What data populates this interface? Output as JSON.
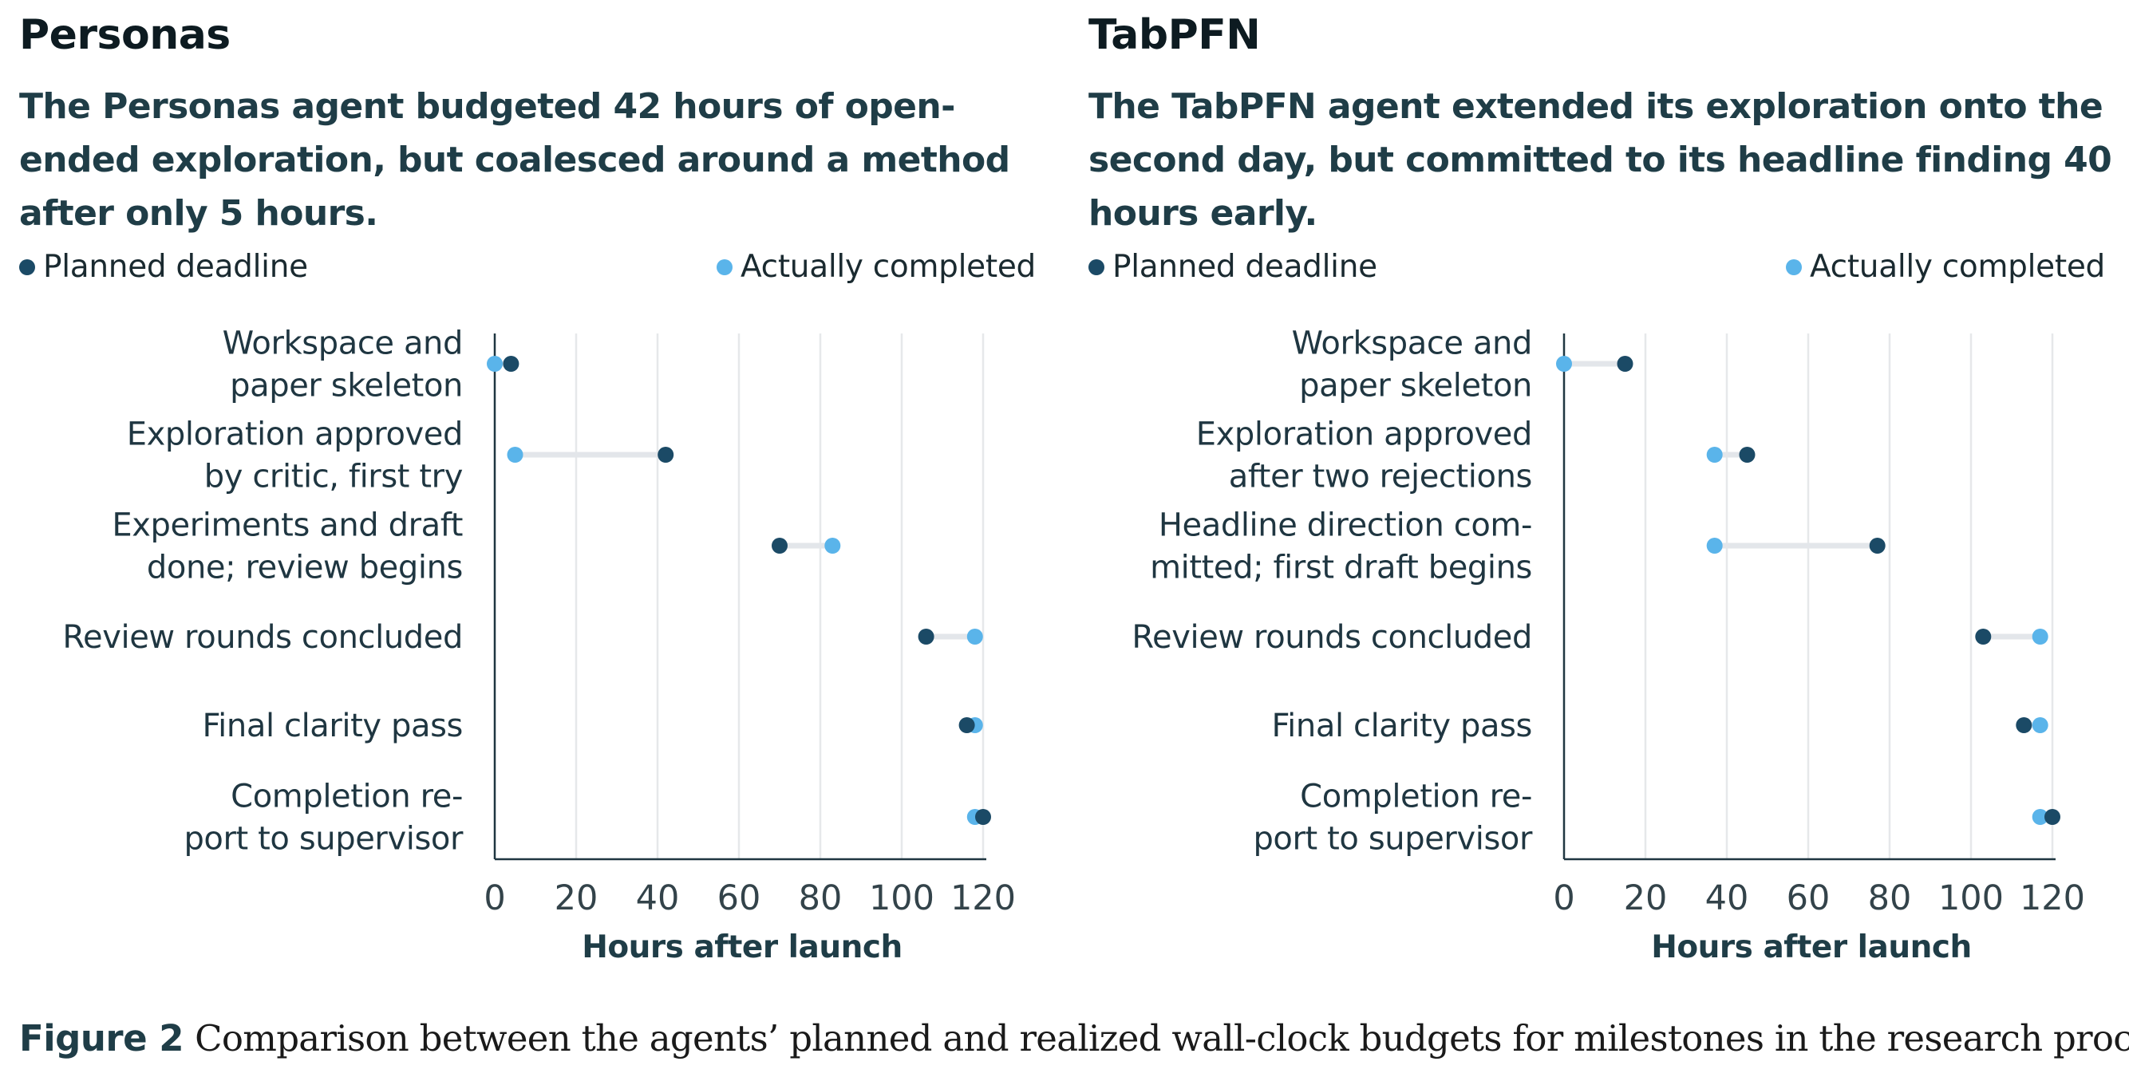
{
  "colors": {
    "planned": "#1b4a66",
    "actual": "#5ab4ea",
    "connector": "#e3e6ea",
    "grid": "#e6e8ea",
    "axis": "#1f3641"
  },
  "chart_data": [
    {
      "type": "dot",
      "panel_label": "Personas",
      "title": "The Personas agent budgeted 42 hours of open-ended exploration, but coalesced around a method after only 5 hours.",
      "legend": {
        "planned": "Planned deadline",
        "actual": "Actually completed",
        "placement": "top"
      },
      "xlabel": "Hours after launch",
      "xlim": [
        0,
        120
      ],
      "xticks": [
        "0",
        "20",
        "40",
        "60",
        "80",
        "100",
        "120"
      ],
      "grid": true,
      "categories": [
        [
          "Workspace and",
          "paper skeleton"
        ],
        [
          "Exploration approved",
          "by critic, first try"
        ],
        [
          "Experiments and draft",
          "done; review begins"
        ],
        [
          "Review rounds concluded"
        ],
        [
          "Final clarity pass"
        ],
        [
          "Completion re-",
          "port to supervisor"
        ]
      ],
      "series": [
        {
          "name": "Planned deadline",
          "values": [
            4,
            42,
            70,
            106,
            116,
            120
          ]
        },
        {
          "name": "Actually completed",
          "values": [
            0,
            5,
            83,
            118,
            118,
            118
          ]
        }
      ]
    },
    {
      "type": "dot",
      "panel_label": "TabPFN",
      "title": "The TabPFN agent extended its exploration onto the second day, but committed to its headline finding 40 hours early.",
      "legend": {
        "planned": "Planned deadline",
        "actual": "Actually completed",
        "placement": "top"
      },
      "xlabel": "Hours after launch",
      "xlim": [
        0,
        120
      ],
      "xticks": [
        "0",
        "20",
        "40",
        "60",
        "80",
        "100",
        "120"
      ],
      "grid": true,
      "categories": [
        [
          "Workspace and",
          "paper skeleton"
        ],
        [
          "Exploration approved",
          "after two rejections"
        ],
        [
          "Headline direction com-",
          "mitted; first draft begins"
        ],
        [
          "Review rounds concluded"
        ],
        [
          "Final clarity pass"
        ],
        [
          "Completion re-",
          "port to supervisor"
        ]
      ],
      "series": [
        {
          "name": "Planned deadline",
          "values": [
            15,
            45,
            77,
            103,
            113,
            120
          ]
        },
        {
          "name": "Actually completed",
          "values": [
            0,
            37,
            37,
            117,
            117,
            117
          ]
        }
      ]
    }
  ],
  "caption": {
    "label": "Figure 2",
    "text": "Comparison between the agents’ planned and realized wall-clock budgets for milestones in the research process."
  }
}
